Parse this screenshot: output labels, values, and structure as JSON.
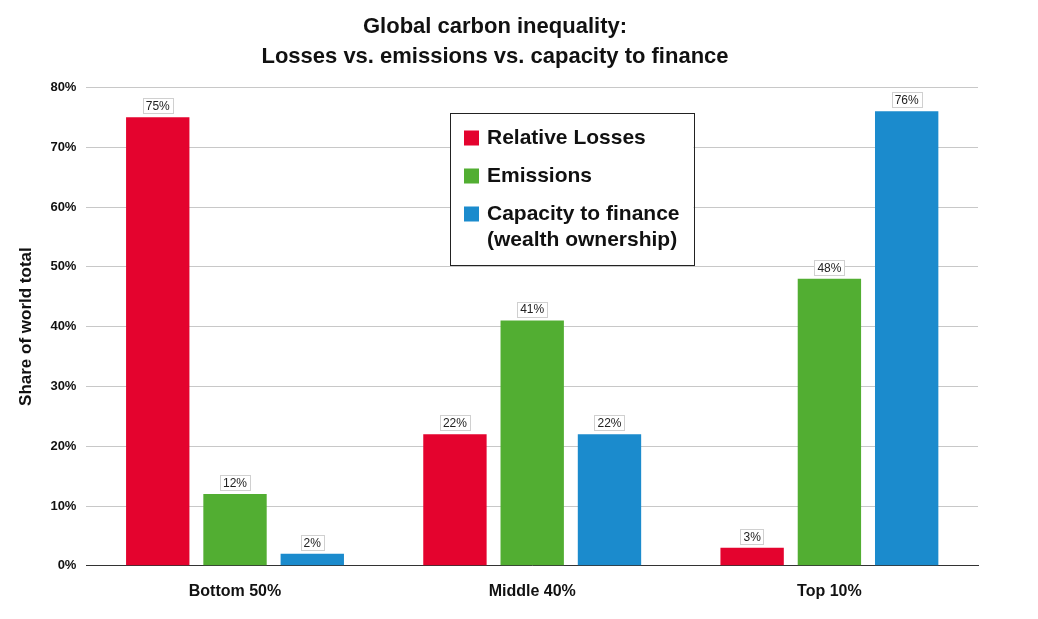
{
  "chart_data": {
    "type": "bar",
    "title": [
      "Global carbon inequality:",
      "Losses vs. emissions vs. capacity to finance"
    ],
    "y_label": "Share of world total",
    "categories": [
      "Bottom 50%",
      "Middle 40%",
      "Top 10%"
    ],
    "series": [
      {
        "name": "Relative Losses",
        "color": "#e4032e",
        "values": [
          75,
          22,
          3
        ],
        "value_labels": [
          "75%",
          "22%",
          "3%"
        ]
      },
      {
        "name": "Emissions",
        "color": "#52ae32",
        "values": [
          12,
          41,
          48
        ],
        "value_labels": [
          "12%",
          "41%",
          "48%"
        ]
      },
      {
        "name": "Capacity to finance (wealth ownership)",
        "color": "#1b8bcd",
        "values": [
          2,
          22,
          76
        ],
        "value_labels": [
          "2%",
          "22%",
          "76%"
        ]
      }
    ],
    "ylim": [
      0,
      80
    ],
    "yticks": [
      {
        "value": 0,
        "label": "0%"
      },
      {
        "value": 10,
        "label": "10%"
      },
      {
        "value": 20,
        "label": "20%"
      },
      {
        "value": 30,
        "label": "30%"
      },
      {
        "value": 40,
        "label": "40%"
      },
      {
        "value": 50,
        "label": "50%"
      },
      {
        "value": 60,
        "label": "60%"
      },
      {
        "value": 70,
        "label": "70%"
      },
      {
        "value": 80,
        "label": "80%"
      }
    ],
    "grid": true,
    "legend": "top",
    "data_labels": true
  }
}
